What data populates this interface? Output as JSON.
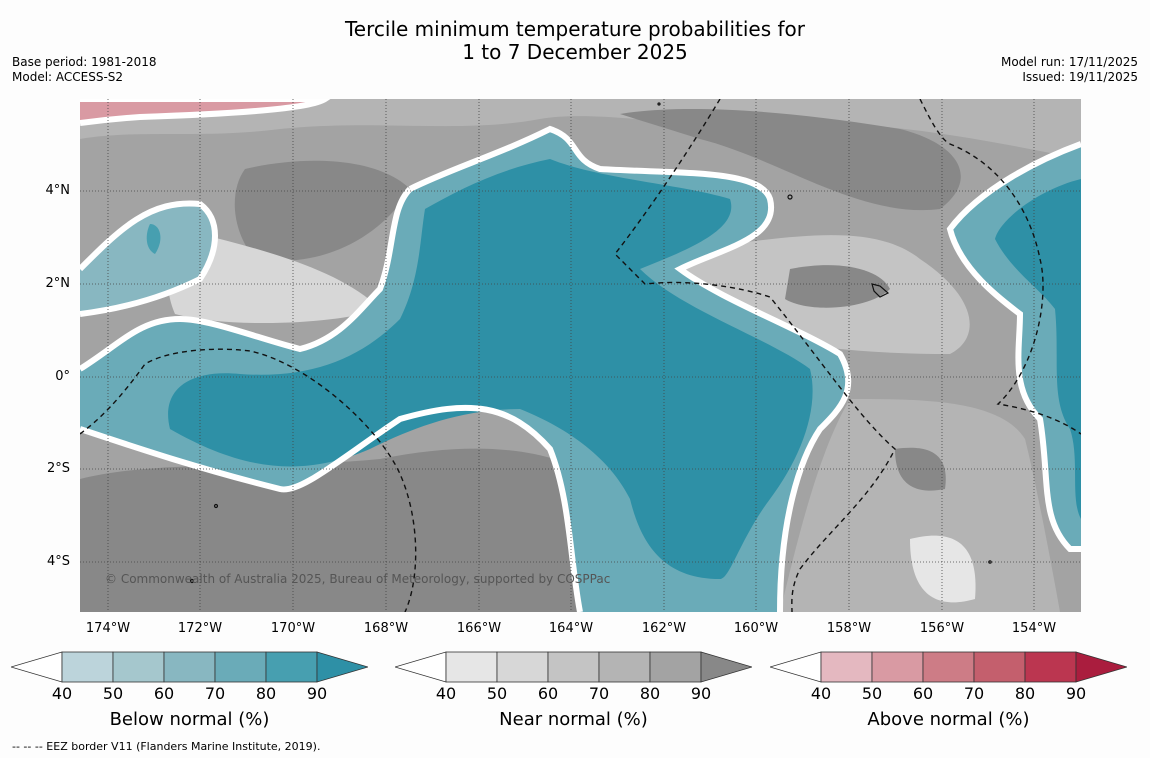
{
  "header": {
    "title_line1": "Tercile minimum temperature probabilities for",
    "title_line2": "1 to 7 December 2025",
    "base_period": "Base period: 1981-2018",
    "model": "Model: ACCESS-S2",
    "model_run": "Model run: 17/11/2025",
    "issued": "Issued: 19/11/2025"
  },
  "map": {
    "lat_labels": [
      "4°N",
      "2°N",
      "0°",
      "2°S",
      "4°S"
    ],
    "lon_labels": [
      "174°W",
      "172°W",
      "170°W",
      "168°W",
      "166°W",
      "164°W",
      "162°W",
      "160°W",
      "158°W",
      "156°W",
      "154°W"
    ],
    "lon_range_deg": [
      -174.6,
      -152.9
    ],
    "lat_range_deg": [
      -5.1,
      6.0
    ],
    "copyright": "© Commonwealth of Australia 2025, Bureau of Meteorology, supported by COSPPac",
    "colors": {
      "below": [
        "#bcd4db",
        "#a5c7cd",
        "#88b7c1",
        "#6aabb8",
        "#479fb0",
        "#2e90a6"
      ],
      "near": [
        "#e6e6e6",
        "#d7d7d7",
        "#c4c4c4",
        "#b4b4b4",
        "#a3a3a3",
        "#888888"
      ],
      "above": [
        "#e4b8c0",
        "#d99aa3",
        "#cd7c86",
        "#c45f6d",
        "#bb3650",
        "#aa1d3e"
      ]
    }
  },
  "legends": {
    "ticks": [
      "40",
      "50",
      "60",
      "70",
      "80",
      "90"
    ],
    "below_label": "Below normal (%)",
    "near_label": "Near normal (%)",
    "above_label": "Above normal (%)"
  },
  "footnote": "--  --  -- EEZ border V11 (Flanders Marine Institute, 2019)."
}
